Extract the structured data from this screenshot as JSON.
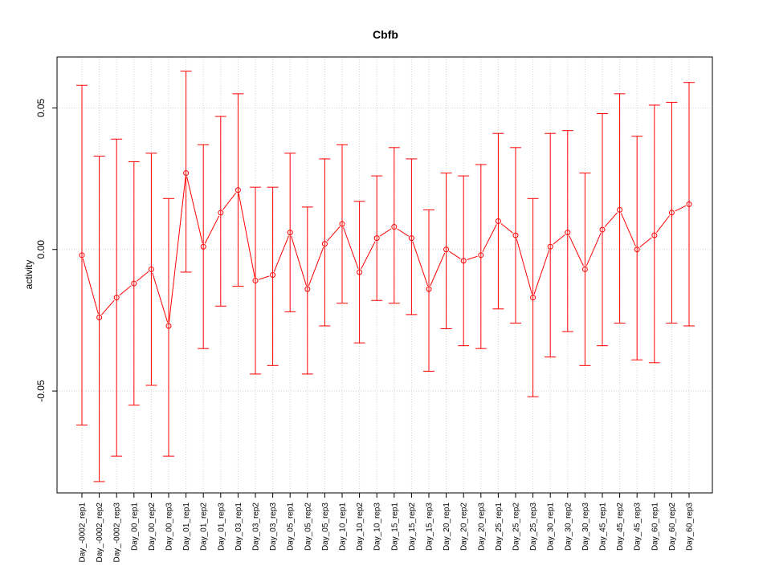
{
  "chart_data": {
    "type": "line",
    "title": "Cbfb",
    "xlabel": "",
    "ylabel": "activity",
    "ylim": [
      -0.086,
      0.068
    ],
    "yticks": [
      -0.05,
      0.0,
      0.05
    ],
    "ytick_labels": [
      "-0.05",
      "0.00",
      "0.05"
    ],
    "grid": true,
    "color": "#ff0000",
    "categories": [
      "Day_-0002_rep1",
      "Day_-0002_rep2",
      "Day_-0002_rep3",
      "Day_00_rep1",
      "Day_00_rep2",
      "Day_00_rep3",
      "Day_01_rep1",
      "Day_01_rep2",
      "Day_01_rep3",
      "Day_03_rep1",
      "Day_03_rep2",
      "Day_03_rep3",
      "Day_05_rep1",
      "Day_05_rep2",
      "Day_05_rep3",
      "Day_10_rep1",
      "Day_10_rep2",
      "Day_10_rep3",
      "Day_15_rep1",
      "Day_15_rep2",
      "Day_15_rep3",
      "Day_20_rep1",
      "Day_20_rep2",
      "Day_20_rep3",
      "Day_25_rep1",
      "Day_25_rep2",
      "Day_25_rep3",
      "Day_30_rep1",
      "Day_30_rep2",
      "Day_30_rep3",
      "Day_45_rep1",
      "Day_45_rep2",
      "Day_45_rep3",
      "Day_60_rep1",
      "Day_60_rep2",
      "Day_60_rep3"
    ],
    "values": [
      -0.002,
      -0.024,
      -0.017,
      -0.012,
      -0.007,
      -0.027,
      0.027,
      0.001,
      0.013,
      0.021,
      -0.011,
      -0.009,
      0.006,
      -0.014,
      0.002,
      0.009,
      -0.008,
      0.004,
      0.008,
      0.004,
      -0.014,
      0.0,
      -0.004,
      -0.002,
      0.01,
      0.005,
      -0.017,
      0.001,
      0.006,
      -0.007,
      0.007,
      0.014,
      0.0,
      0.005,
      0.013,
      0.016
    ],
    "upper": [
      0.058,
      0.033,
      0.039,
      0.031,
      0.034,
      0.018,
      0.063,
      0.037,
      0.047,
      0.055,
      0.022,
      0.022,
      0.034,
      0.015,
      0.032,
      0.037,
      0.017,
      0.026,
      0.036,
      0.032,
      0.014,
      0.027,
      0.026,
      0.03,
      0.041,
      0.036,
      0.018,
      0.041,
      0.042,
      0.027,
      0.048,
      0.055,
      0.04,
      0.051,
      0.052,
      0.059
    ],
    "lower": [
      -0.062,
      -0.082,
      -0.073,
      -0.055,
      -0.048,
      -0.073,
      -0.008,
      -0.035,
      -0.02,
      -0.013,
      -0.044,
      -0.041,
      -0.022,
      -0.044,
      -0.027,
      -0.019,
      -0.033,
      -0.018,
      -0.019,
      -0.023,
      -0.043,
      -0.028,
      -0.034,
      -0.035,
      -0.021,
      -0.026,
      -0.052,
      -0.038,
      -0.029,
      -0.041,
      -0.034,
      -0.026,
      -0.039,
      -0.04,
      -0.026,
      -0.027
    ]
  }
}
